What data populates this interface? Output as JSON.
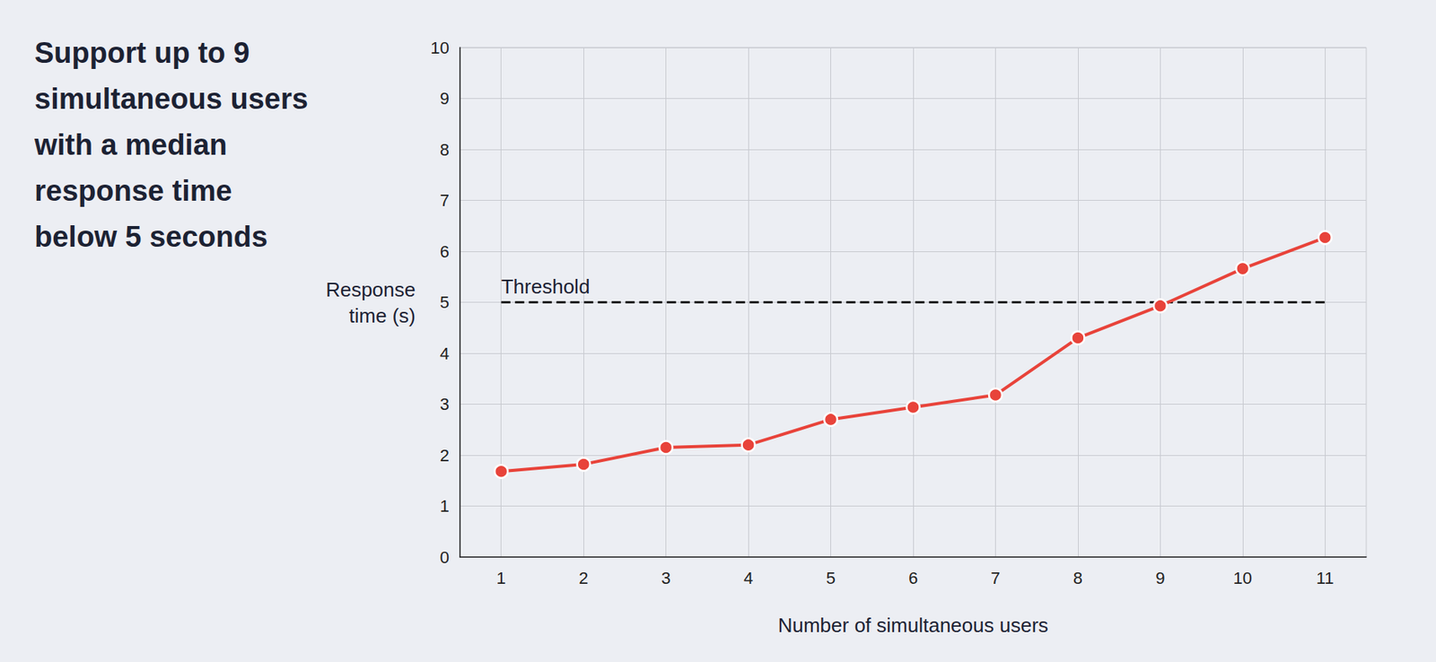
{
  "chart_data": {
    "type": "line",
    "title": "Support up to 9\nsimultaneous users\nwith a median\nresponse time\nbelow 5 seconds",
    "x": [
      1,
      2,
      3,
      4,
      5,
      6,
      7,
      8,
      9,
      10,
      11
    ],
    "values": [
      1.68,
      1.82,
      2.15,
      2.2,
      2.7,
      2.94,
      3.18,
      4.3,
      4.93,
      5.66,
      6.27
    ],
    "color": "#e8433a",
    "marker": "circle",
    "xlabel": "Number of simultaneous users",
    "ylabel": "Response\ntime (s)",
    "xlim": [
      0.5,
      11.5
    ],
    "xticks": [
      1,
      2,
      3,
      4,
      5,
      6,
      7,
      8,
      9,
      10,
      11
    ],
    "ylim": [
      0,
      10
    ],
    "yticks": [
      0,
      1,
      2,
      3,
      4,
      5,
      6,
      7,
      8,
      9,
      10
    ],
    "grid": true,
    "annotations": [
      {
        "type": "hline",
        "y": 5,
        "x": [
          1,
          11
        ],
        "label": "Threshold",
        "line_style": "dashed"
      }
    ]
  }
}
